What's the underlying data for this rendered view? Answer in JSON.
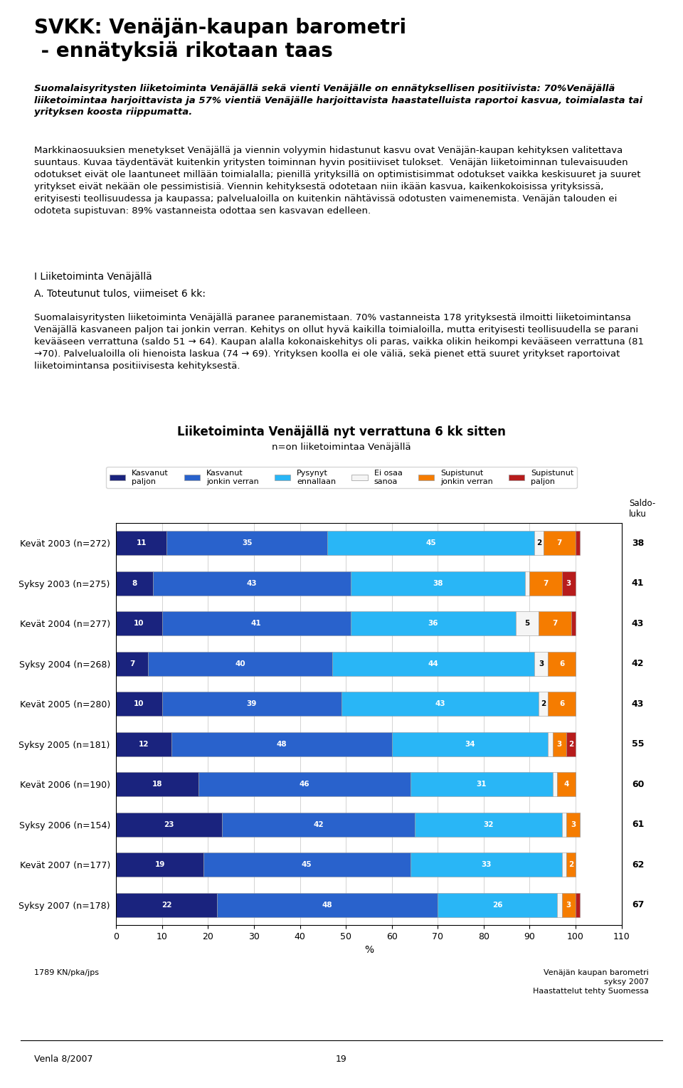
{
  "chart_data": {
    "type": "bar",
    "orientation": "horizontal",
    "stacked": true,
    "title": "Liiketoiminta Venäjällä nyt verrattuna 6 kk sitten",
    "subtitle": "n=on liiketoimintaa Venäjällä",
    "categories": [
      "Kevät 2003 (n=272)",
      "Syksy 2003 (n=275)",
      "Kevät 2004 (n=277)",
      "Syksy 2004 (n=268)",
      "Kevät 2005 (n=280)",
      "Syksy 2005 (n=181)",
      "Kevät 2006 (n=190)",
      "Syksy 2006 (n=154)",
      "Kevät 2007 (n=177)",
      "Syksy 2007 (n=178)"
    ],
    "series": [
      {
        "name": "Kasvanut\npaljon",
        "color": "#1a237e",
        "values": [
          11,
          8,
          10,
          7,
          10,
          12,
          18,
          23,
          19,
          22
        ],
        "value_labels": [
          "11",
          "8",
          "10",
          "7",
          "10",
          "12",
          "18",
          "23",
          "19",
          "22"
        ]
      },
      {
        "name": "Kasvanut\njonkin verran",
        "color": "#2962cc",
        "values": [
          35,
          43,
          41,
          40,
          39,
          48,
          46,
          42,
          45,
          48
        ],
        "value_labels": [
          "35",
          "43",
          "41",
          "40",
          "39",
          "48",
          "46",
          "42",
          "45",
          "48"
        ]
      },
      {
        "name": "Pysynyt\nennallaan",
        "color": "#29b6f6",
        "values": [
          45,
          38,
          36,
          44,
          43,
          34,
          31,
          32,
          33,
          26
        ],
        "value_labels": [
          "45",
          "38",
          "36",
          "44",
          "43",
          "34",
          "31",
          "32",
          "33",
          "26"
        ]
      },
      {
        "name": "Ei osaa\nsanoa",
        "color": "#f5f5f5",
        "values": [
          2,
          1,
          5,
          3,
          2,
          1,
          1,
          1,
          1,
          1
        ],
        "value_labels": [
          "2",
          null,
          "5",
          "3",
          "2",
          null,
          null,
          null,
          null,
          null
        ]
      },
      {
        "name": "Supistunut\njonkin verran",
        "color": "#f57c00",
        "values": [
          7,
          7,
          7,
          6,
          6,
          3,
          4,
          3,
          2,
          3
        ],
        "value_labels": [
          "7",
          "7",
          "7",
          "6",
          "6",
          "3",
          "4",
          "3",
          "2",
          "3"
        ]
      },
      {
        "name": "Supistunut\npaljon",
        "color": "#b71c1c",
        "values": [
          1,
          3,
          1,
          0,
          0,
          2,
          0,
          0,
          0,
          1
        ],
        "value_labels": [
          null,
          "3",
          null,
          null,
          null,
          "2",
          null,
          null,
          null,
          null
        ]
      }
    ],
    "data_labels": true,
    "saldo_label": "Saldo-\nluku",
    "saldo": [
      38,
      41,
      43,
      42,
      43,
      55,
      60,
      61,
      62,
      67
    ],
    "x_label": "%",
    "xlim": [
      0,
      110
    ],
    "xticks": [
      0,
      10,
      20,
      30,
      40,
      50,
      60,
      70,
      80,
      90,
      100,
      110
    ],
    "grid": true,
    "legend": "upper center"
  },
  "page": {
    "heading": [
      "SVKK: Venäjän-kaupan barometri",
      " - ennätyksiä rikotaan taas"
    ],
    "intro": "Suomalaisyritysten liiketoiminta Venäjällä sekä vienti Venäjälle on ennätyksellisen positiivista: 70%Venäjällä liiketoimintaa harjoittavista ja 57% vientiä Venäjälle harjoittavista haastatelluista raportoi kasvua, toimialasta tai yrityksen koosta riippumatta.",
    "body1": "Markkinaosuuksien menetykset Venäjällä ja viennin volyymin hidastunut kasvu ovat Venäjän-kaupan kehityksen valitettava suuntaus. Kuvaa täydentävät kuitenkin yritysten toiminnan hyvin positiiviset tulokset.  Venäjän liiketoiminnan tulevaisuuden odotukset eivät ole laantuneet millään toimialalla; pienillä yrityksillä on optimistisimmat odotukset vaikka keskisuuret ja suuret yritykset eivät nekään ole pessimistisiä. Viennin kehityksestä odotetaan niin ikään kasvua, kaikenkokoisissa yrityksissä, erityisesti teollisuudessa ja kaupassa; palvelualoilla on kuitenkin nähtävissä odotusten vaimenemista. Venäjän talouden ei odoteta supistuvan: 89% vastanneista odottaa sen kasvavan edelleen.",
    "section": "I Liiketoiminta Venäjällä",
    "subsection": "A. Toteutunut tulos, viimeiset 6 kk:",
    "body2": "Suomalaisyritysten liiketoiminta Venäjällä paranee paranemistaan. 70% vastanneista 178 yrityksestä ilmoitti liiketoimintansa Venäjällä kasvaneen paljon tai jonkin verran. Kehitys on ollut hyvä kaikilla toimialoilla, mutta erityisesti teollisuudella se parani kevääseen verrattuna (saldo 51 → 64). Kaupan alalla kokonaiskehitys oli paras, vaikka olikin heikompi kevääseen verrattuna (81 →70). Palvelualoilla oli hienoista laskua (74 → 69). Yrityksen koolla ei ole väliä, sekä pienet että suuret yritykset raportoivat liiketoimintansa positiivisesta kehityksestä.",
    "footer_left": "1789 KN/pka/jps",
    "footer_right": [
      "Venäjän kaupan barometri",
      "syksy 2007",
      "Haastattelut tehty Suomessa"
    ],
    "bottom_left": "Venla 8/2007",
    "bottom_center": "19"
  }
}
